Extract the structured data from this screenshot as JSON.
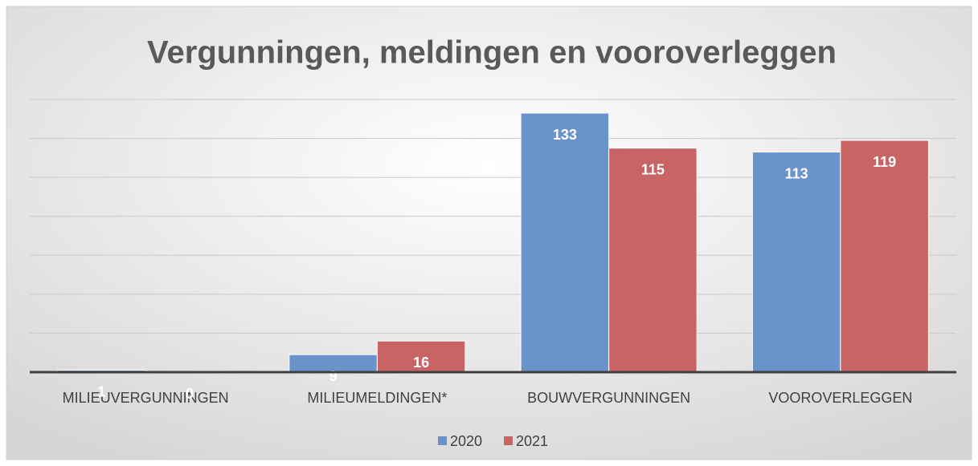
{
  "chart_data": {
    "type": "bar",
    "title": "Vergunningen, meldingen en vooroverleggen",
    "categories": [
      "MILIEUVERGUNNINGEN",
      "MILIEUMELDINGEN*",
      "BOUWVERGUNNINGEN",
      "VOOROVERLEGGEN"
    ],
    "series": [
      {
        "name": "2020",
        "color": "#6a93c9",
        "values": [
          1,
          9,
          133,
          113
        ]
      },
      {
        "name": "2021",
        "color": "#c96464",
        "values": [
          0,
          16,
          115,
          119
        ]
      }
    ],
    "ylim": [
      0,
      140
    ],
    "yticks": [
      0,
      20,
      40,
      60,
      80,
      100,
      120,
      140
    ],
    "grid": true,
    "legend": "bottom"
  }
}
